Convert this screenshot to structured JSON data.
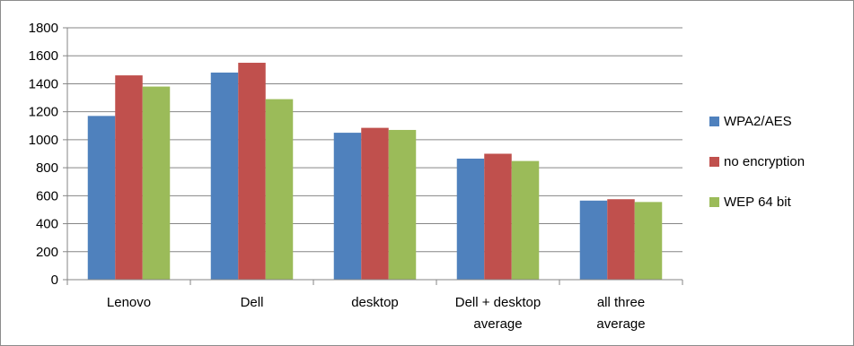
{
  "chart_data": {
    "type": "bar",
    "categories": [
      [
        "Lenovo"
      ],
      [
        "Dell"
      ],
      [
        "desktop"
      ],
      [
        "Dell + desktop",
        "average"
      ],
      [
        "all three",
        "average"
      ]
    ],
    "series": [
      {
        "name": "WPA2/AES",
        "color": "#4f81bd",
        "values": [
          1170,
          1480,
          1050,
          865,
          565
        ]
      },
      {
        "name": "no encryption",
        "color": "#c0504d",
        "values": [
          1460,
          1550,
          1085,
          900,
          575
        ]
      },
      {
        "name": "WEP 64 bit",
        "color": "#9bbb59",
        "values": [
          1380,
          1290,
          1070,
          848,
          555
        ]
      }
    ],
    "yticks": [
      0,
      200,
      400,
      600,
      800,
      1000,
      1200,
      1400,
      1600,
      1800
    ],
    "ylim": [
      0,
      1800
    ],
    "grid": true,
    "legend_position": "right"
  }
}
